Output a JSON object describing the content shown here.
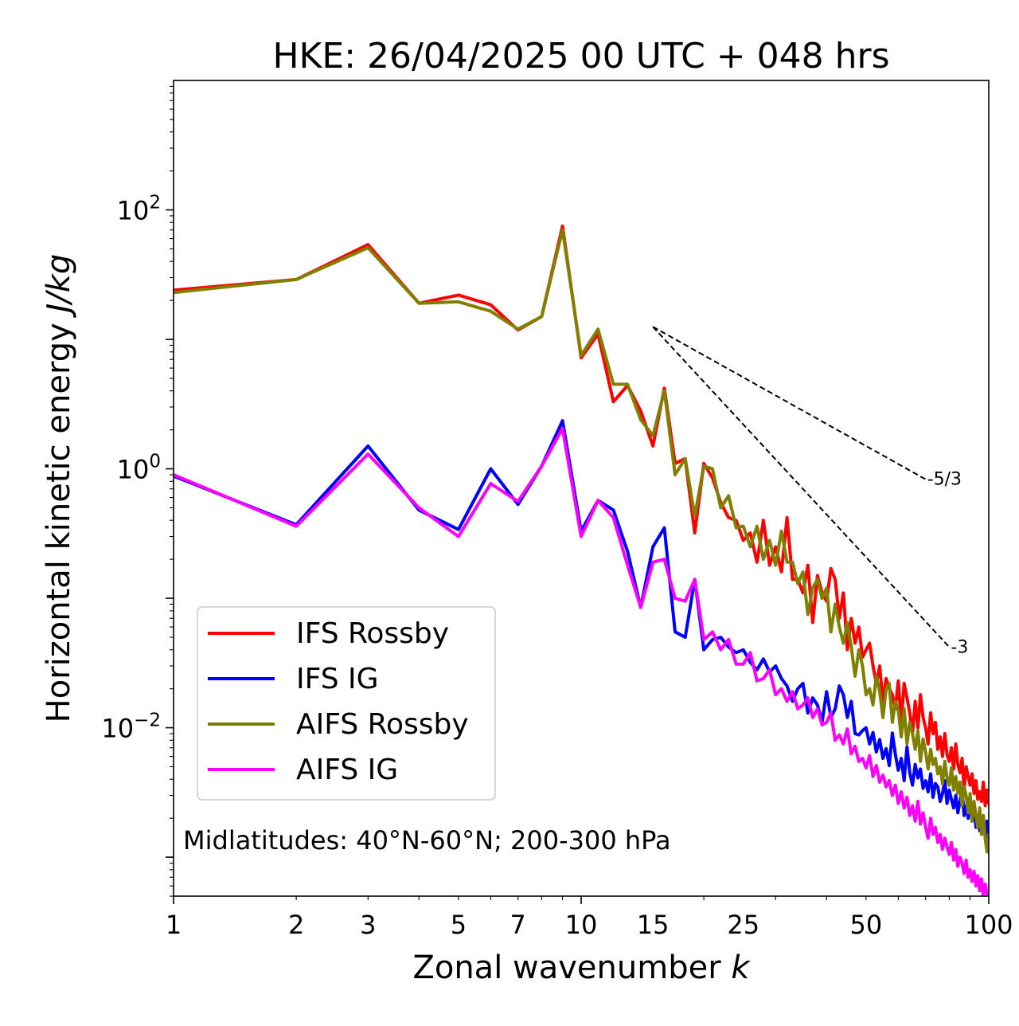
{
  "chart_data": {
    "type": "line",
    "title": "HKE: 26/04/2025 00 UTC + 048 hrs",
    "xlabel": "Zonal wavenumber",
    "xlabel_var": "k",
    "ylabel": "Horizontal kinetic energy",
    "ylabel_unit": "J/kg",
    "xscale": "log",
    "yscale": "log",
    "xlim": [
      1,
      100
    ],
    "ylim": [
      0.0005,
      1000
    ],
    "xticks": [
      1,
      2,
      3,
      5,
      7,
      10,
      15,
      25,
      50,
      100
    ],
    "xtick_labels": [
      "1",
      "2",
      "3",
      "5",
      "7",
      "10",
      "15",
      "25",
      "50",
      "100"
    ],
    "yticks": [
      {
        "value": 100,
        "base": "10",
        "exp": "2"
      },
      {
        "value": 1,
        "base": "10",
        "exp": "0"
      },
      {
        "value": 0.01,
        "base": "10",
        "exp": "−2"
      }
    ],
    "grid": false,
    "legend_position": "lower-left",
    "annotation": "Midlatitudes: 40°N-60°N; 200-300 hPa",
    "slope_lines": [
      {
        "label": "-5/3",
        "x": [
          15,
          70
        ],
        "y": [
          12.5,
          0.83
        ]
      },
      {
        "label": "-3",
        "x": [
          15,
          80
        ],
        "y": [
          12.5,
          0.042
        ]
      }
    ],
    "series": [
      {
        "name": "IFS Rossby",
        "color": "#ff0000",
        "x": [
          1,
          2,
          3,
          4,
          5,
          6,
          7,
          8,
          9,
          10,
          11,
          12,
          13,
          14,
          15,
          16,
          17,
          18,
          19,
          20,
          21,
          22,
          23,
          24,
          25,
          26,
          27,
          28,
          29,
          30,
          31,
          32,
          33,
          34,
          35,
          36,
          37,
          38,
          39,
          40,
          41,
          42,
          43,
          44,
          45,
          46,
          47,
          48,
          49,
          50,
          51,
          52,
          53,
          54,
          55,
          56,
          57,
          58,
          59,
          60,
          61,
          62,
          63,
          64,
          65,
          66,
          67,
          68,
          69,
          70,
          71,
          72,
          73,
          74,
          75,
          76,
          77,
          78,
          79,
          80,
          81,
          82,
          83,
          84,
          85,
          86,
          87,
          88,
          89,
          90,
          91,
          92,
          93,
          94,
          95,
          96,
          97,
          98,
          99,
          100
        ],
        "y": [
          24,
          29,
          54,
          19,
          22,
          18.5,
          11.8,
          15,
          75,
          7.2,
          11,
          3.3,
          4.4,
          2.8,
          1.5,
          4.2,
          1.1,
          1.2,
          0.32,
          1.1,
          0.85,
          0.55,
          0.42,
          0.4,
          0.28,
          0.32,
          0.19,
          0.4,
          0.18,
          0.25,
          0.16,
          0.42,
          0.14,
          0.14,
          0.11,
          0.18,
          0.065,
          0.15,
          0.11,
          0.095,
          0.17,
          0.14,
          0.07,
          0.11,
          0.04,
          0.07,
          0.045,
          0.06,
          0.035,
          0.04,
          0.045,
          0.03,
          0.022,
          0.03,
          0.016,
          0.024,
          0.02,
          0.018,
          0.014,
          0.023,
          0.011,
          0.022,
          0.017,
          0.013,
          0.009,
          0.016,
          0.01,
          0.018,
          0.012,
          0.01,
          0.0075,
          0.013,
          0.009,
          0.011,
          0.0068,
          0.0085,
          0.006,
          0.009,
          0.0062,
          0.0055,
          0.007,
          0.0048,
          0.0075,
          0.0052,
          0.0045,
          0.0058,
          0.0034,
          0.005,
          0.0042,
          0.0036,
          0.0044,
          0.0031,
          0.0039,
          0.0028,
          0.0032,
          0.0027,
          0.0038,
          0.0025,
          0.0033,
          0.0026
        ]
      },
      {
        "name": "IFS IG",
        "color": "#0000ff",
        "x": [
          1,
          2,
          3,
          4,
          5,
          6,
          7,
          8,
          9,
          10,
          11,
          12,
          13,
          14,
          15,
          16,
          17,
          18,
          19,
          20,
          21,
          22,
          23,
          24,
          25,
          26,
          27,
          28,
          29,
          30,
          31,
          32,
          33,
          34,
          35,
          36,
          37,
          38,
          39,
          40,
          41,
          42,
          43,
          44,
          45,
          46,
          47,
          48,
          49,
          50,
          51,
          52,
          53,
          54,
          55,
          56,
          57,
          58,
          59,
          60,
          61,
          62,
          63,
          64,
          65,
          66,
          67,
          68,
          69,
          70,
          71,
          72,
          73,
          74,
          75,
          76,
          77,
          78,
          79,
          80,
          81,
          82,
          83,
          84,
          85,
          86,
          87,
          88,
          89,
          90,
          91,
          92,
          93,
          94,
          95,
          96,
          97,
          98,
          99,
          100
        ],
        "y": [
          0.88,
          0.37,
          1.5,
          0.48,
          0.34,
          1,
          0.53,
          1.05,
          2.35,
          0.33,
          0.57,
          0.48,
          0.23,
          0.085,
          0.25,
          0.35,
          0.055,
          0.05,
          0.14,
          0.04,
          0.048,
          0.05,
          0.042,
          0.038,
          0.04,
          0.032,
          0.028,
          0.034,
          0.027,
          0.03,
          0.024,
          0.021,
          0.016,
          0.02,
          0.022,
          0.013,
          0.017,
          0.015,
          0.011,
          0.019,
          0.012,
          0.014,
          0.021,
          0.018,
          0.012,
          0.016,
          0.009,
          0.0088,
          0.0095,
          0.01,
          0.0075,
          0.0092,
          0.0065,
          0.0081,
          0.0058,
          0.0069,
          0.0051,
          0.0091,
          0.0062,
          0.0047,
          0.0058,
          0.0039,
          0.0071,
          0.0045,
          0.0036,
          0.0052,
          0.0041,
          0.0048,
          0.0034,
          0.0039,
          0.0032,
          0.0044,
          0.0029,
          0.0037,
          0.0035,
          0.0027,
          0.0031,
          0.0039,
          0.0026,
          0.0033,
          0.0028,
          0.0024,
          0.003,
          0.0022,
          0.0027,
          0.0034,
          0.0021,
          0.0025,
          0.002,
          0.0029,
          0.0019,
          0.0024,
          0.0017,
          0.0021,
          0.0016,
          0.0019,
          0.0018,
          0.0015,
          0.0019,
          0.0012
        ]
      },
      {
        "name": "AIFS Rossby",
        "color": "#808000",
        "x": [
          1,
          2,
          3,
          4,
          5,
          6,
          7,
          8,
          9,
          10,
          11,
          12,
          13,
          14,
          15,
          16,
          17,
          18,
          19,
          20,
          21,
          22,
          23,
          24,
          25,
          26,
          27,
          28,
          29,
          30,
          31,
          32,
          33,
          34,
          35,
          36,
          37,
          38,
          39,
          40,
          41,
          42,
          43,
          44,
          45,
          46,
          47,
          48,
          49,
          50,
          51,
          52,
          53,
          54,
          55,
          56,
          57,
          58,
          59,
          60,
          61,
          62,
          63,
          64,
          65,
          66,
          67,
          68,
          69,
          70,
          71,
          72,
          73,
          74,
          75,
          76,
          77,
          78,
          79,
          80,
          81,
          82,
          83,
          84,
          85,
          86,
          87,
          88,
          89,
          90,
          91,
          92,
          93,
          94,
          95,
          96,
          97,
          98,
          99,
          100
        ],
        "y": [
          23,
          29,
          51,
          19,
          19.5,
          16.5,
          12,
          15,
          70,
          7.5,
          12,
          4.5,
          4.5,
          2.4,
          1.8,
          4,
          0.9,
          1.2,
          0.43,
          1.05,
          1,
          0.5,
          0.62,
          0.35,
          0.36,
          0.25,
          0.36,
          0.2,
          0.28,
          0.18,
          0.33,
          0.19,
          0.19,
          0.13,
          0.16,
          0.075,
          0.12,
          0.14,
          0.1,
          0.12,
          0.055,
          0.09,
          0.06,
          0.045,
          0.065,
          0.042,
          0.025,
          0.04,
          0.03,
          0.018,
          0.02,
          0.015,
          0.025,
          0.019,
          0.012,
          0.02,
          0.022,
          0.011,
          0.016,
          0.0135,
          0.0085,
          0.014,
          0.0075,
          0.011,
          0.009,
          0.0068,
          0.0095,
          0.0055,
          0.0082,
          0.0065,
          0.0048,
          0.0068,
          0.0052,
          0.0058,
          0.0044,
          0.005,
          0.0037,
          0.0055,
          0.0041,
          0.0036,
          0.0049,
          0.0033,
          0.0042,
          0.0031,
          0.0038,
          0.0025,
          0.0035,
          0.003,
          0.0022,
          0.0031,
          0.0019,
          0.0027,
          0.0021,
          0.0017,
          0.0024,
          0.0015,
          0.0021,
          0.0014,
          0.0011,
          0.0015
        ]
      },
      {
        "name": "AIFS IG",
        "color": "#ff00ff",
        "x": [
          1,
          2,
          3,
          4,
          5,
          6,
          7,
          8,
          9,
          10,
          11,
          12,
          13,
          14,
          15,
          16,
          17,
          18,
          19,
          20,
          21,
          22,
          23,
          24,
          25,
          26,
          27,
          28,
          29,
          30,
          31,
          32,
          33,
          34,
          35,
          36,
          37,
          38,
          39,
          40,
          41,
          42,
          43,
          44,
          45,
          46,
          47,
          48,
          49,
          50,
          51,
          52,
          53,
          54,
          55,
          56,
          57,
          58,
          59,
          60,
          61,
          62,
          63,
          64,
          65,
          66,
          67,
          68,
          69,
          70,
          71,
          72,
          73,
          74,
          75,
          76,
          77,
          78,
          79,
          80,
          81,
          82,
          83,
          84,
          85,
          86,
          87,
          88,
          89,
          90,
          91,
          92,
          93,
          94,
          95,
          96,
          97,
          98,
          99,
          100
        ],
        "y": [
          0.9,
          0.36,
          1.3,
          0.5,
          0.3,
          0.77,
          0.56,
          1.05,
          2.05,
          0.3,
          0.57,
          0.42,
          0.18,
          0.085,
          0.19,
          0.2,
          0.1,
          0.095,
          0.14,
          0.048,
          0.055,
          0.04,
          0.048,
          0.031,
          0.031,
          0.038,
          0.023,
          0.024,
          0.028,
          0.018,
          0.02,
          0.016,
          0.019,
          0.014,
          0.015,
          0.017,
          0.012,
          0.014,
          0.0105,
          0.011,
          0.013,
          0.008,
          0.0088,
          0.0075,
          0.0098,
          0.0063,
          0.0072,
          0.0055,
          0.0058,
          0.0049,
          0.0061,
          0.0042,
          0.0051,
          0.0038,
          0.0043,
          0.0035,
          0.0039,
          0.003,
          0.0036,
          0.0026,
          0.0032,
          0.0024,
          0.0029,
          0.0021,
          0.0025,
          0.0019,
          0.0027,
          0.0018,
          0.0022,
          0.0017,
          0.0014,
          0.002,
          0.0015,
          0.0017,
          0.0013,
          0.0015,
          0.00115,
          0.0014,
          0.0012,
          0.00105,
          0.0013,
          0.00095,
          0.00115,
          0.00085,
          0.001,
          0.0009,
          0.00075,
          0.00095,
          0.0007,
          0.0008,
          0.00065,
          0.00078,
          0.0006,
          0.00072,
          0.00055,
          0.00068,
          0.0005,
          0.00062,
          0.00052,
          0.0005
        ]
      }
    ]
  }
}
